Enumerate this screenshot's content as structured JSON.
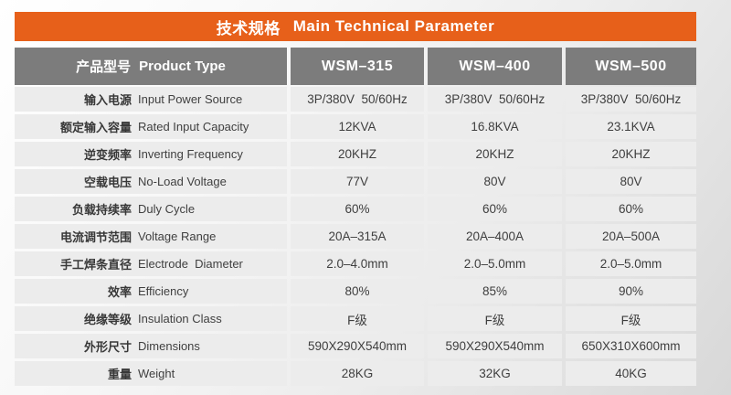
{
  "colors": {
    "accent_orange": "#E7601A",
    "header_gray": "#7C7C7C",
    "row_background": "#ECECEC",
    "text_dark": "#3E3E3E",
    "text_light": "#FFFFFF"
  },
  "title": {
    "zh": "技术规格",
    "en": "Main Technical Parameter"
  },
  "product_table": {
    "header": {
      "label_zh": "产品型号",
      "label_en": "Product Type",
      "models": [
        "WSM–315",
        "WSM–400",
        "WSM–500"
      ]
    },
    "rows": [
      {
        "zh": "输入电源",
        "en": "Input Power Source",
        "values": [
          "3P/380V  50/60Hz",
          "3P/380V  50/60Hz",
          "3P/380V  50/60Hz"
        ]
      },
      {
        "zh": "额定输入容量",
        "en": "Rated Input Capacity",
        "values": [
          "12KVA",
          "16.8KVA",
          "23.1KVA"
        ]
      },
      {
        "zh": "逆变频率",
        "en": "Inverting Frequency",
        "values": [
          "20KHZ",
          "20KHZ",
          "20KHZ"
        ]
      },
      {
        "zh": "空载电压",
        "en": "No-Load Voltage",
        "values": [
          "77V",
          "80V",
          "80V"
        ]
      },
      {
        "zh": "负载持续率",
        "en": "Duly Cycle",
        "values": [
          "60%",
          "60%",
          "60%"
        ]
      },
      {
        "zh": "电流调节范围",
        "en": "Voltage Range",
        "values": [
          "20A–315A",
          "20A–400A",
          "20A–500A"
        ]
      },
      {
        "zh": "手工焊条直径",
        "en": "Electrode  Diameter",
        "values": [
          "2.0–4.0mm",
          "2.0–5.0mm",
          "2.0–5.0mm"
        ]
      },
      {
        "zh": "效率",
        "en": "Efficiency",
        "values": [
          "80%",
          "85%",
          "90%"
        ]
      },
      {
        "zh": "绝缘等级",
        "en": "Insulation Class",
        "values": [
          "F级",
          "F级",
          "F级"
        ]
      },
      {
        "zh": "外形尺寸",
        "en": "Dimensions",
        "values": [
          "590X290X540mm",
          "590X290X540mm",
          "650X310X600mm"
        ]
      },
      {
        "zh": "重量",
        "en": "Weight",
        "values": [
          "28KG",
          "32KG",
          "40KG"
        ]
      }
    ]
  }
}
